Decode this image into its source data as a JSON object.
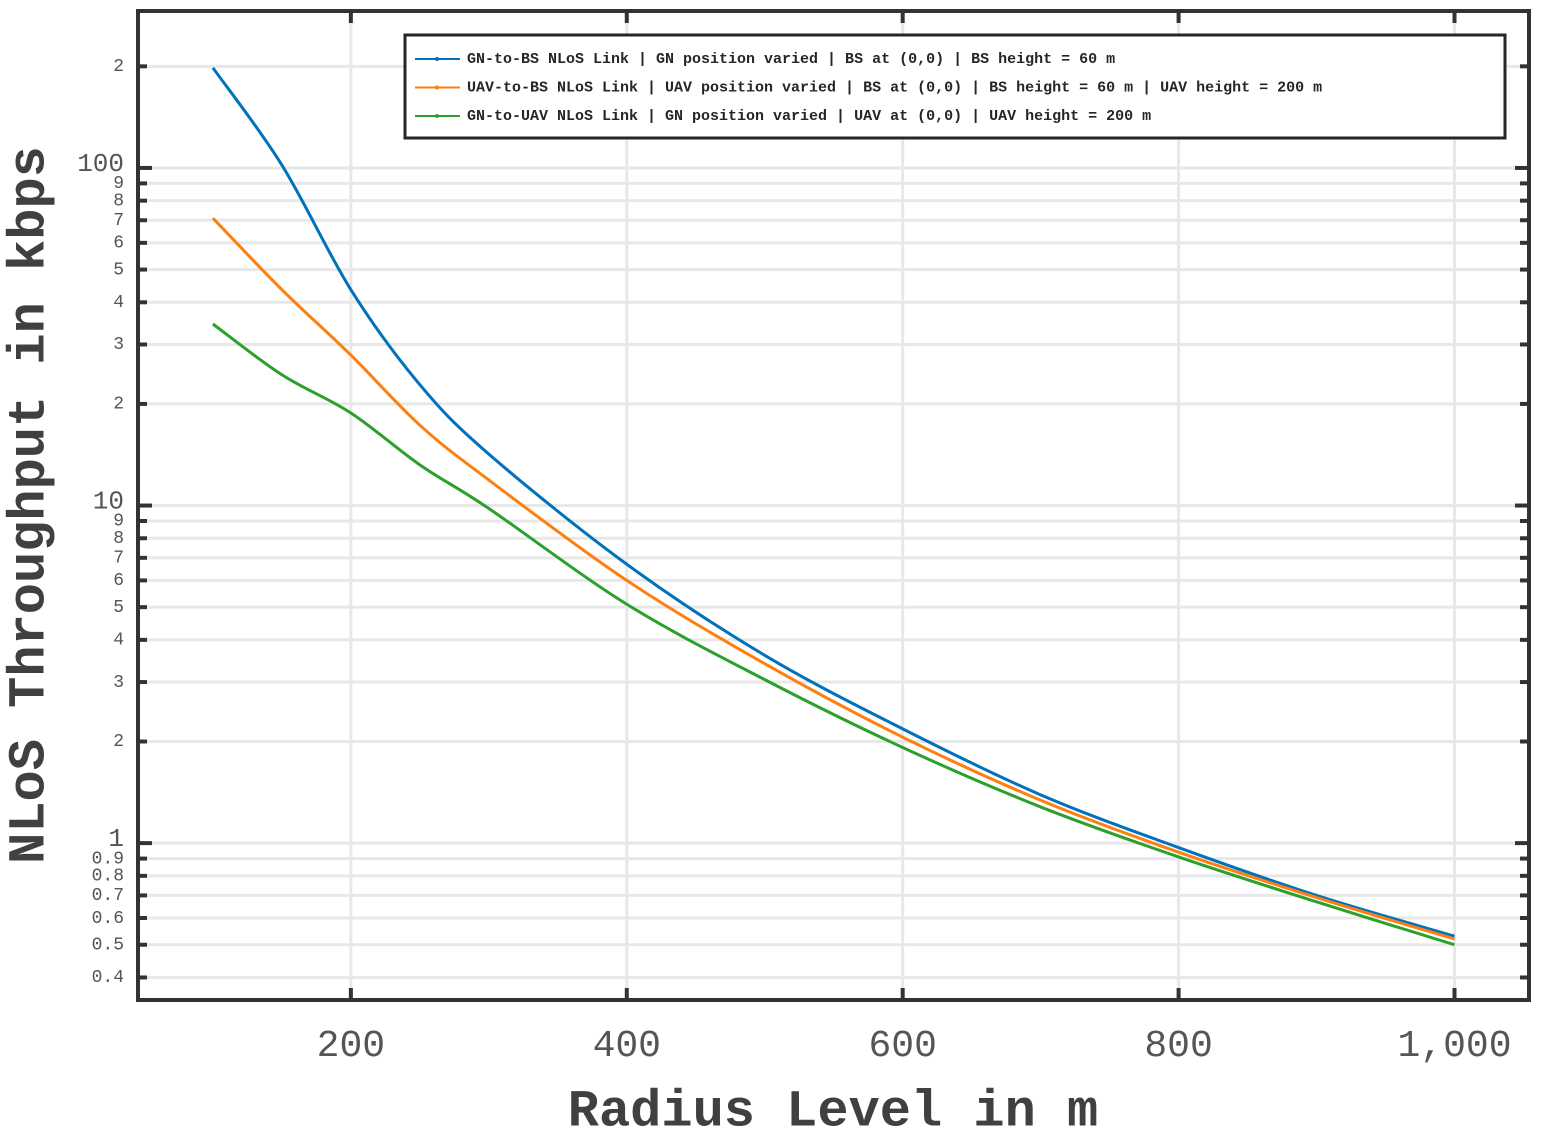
{
  "chart_data": {
    "type": "line",
    "xlabel": "Radius Level in m",
    "ylabel": "NLoS Throughput in kbps",
    "x": [
      100,
      150,
      200,
      250,
      300,
      400,
      500,
      600,
      700,
      800,
      900,
      1000
    ],
    "series": [
      {
        "name": "GN-to-BS NLoS Link | GN position varied | BS at (0,0) | BS height = 60 m",
        "color": "#0072bd",
        "values": [
          198,
          102,
          43.6,
          22.8,
          14.2,
          6.7,
          3.6,
          2.18,
          1.39,
          0.97,
          0.7,
          0.53
        ]
      },
      {
        "name": "UAV-to-BS NLoS Link | UAV position varied | BS at (0,0) | BS height = 60 m | UAV height = 200 m",
        "color": "#ff7f0e",
        "values": [
          71,
          43.6,
          27.9,
          17.3,
          11.9,
          6.0,
          3.4,
          2.06,
          1.34,
          0.94,
          0.69,
          0.52
        ]
      },
      {
        "name": "GN-to-UAV NLoS Link | GN position varied | UAV at (0,0) | UAV height = 200 m",
        "color": "#2ca02c",
        "values": [
          34.5,
          24.4,
          18.8,
          13.2,
          9.8,
          5.1,
          3.05,
          1.92,
          1.28,
          0.91,
          0.67,
          0.5
        ]
      }
    ],
    "xlim": [
      45.7,
      1054
    ],
    "xticks": [
      200,
      400,
      600,
      800,
      {
        "value": 1000,
        "label": "1,000"
      }
    ],
    "ylim": [
      0.343,
      291.7
    ],
    "yscale": "log",
    "yticks": [
      0.4,
      0.5,
      0.6,
      0.7,
      0.8,
      0.9,
      1,
      2,
      3,
      4,
      5,
      6,
      7,
      8,
      9,
      10,
      {
        "value": 20,
        "label": "2"
      },
      {
        "value": 30,
        "label": "3"
      },
      {
        "value": 40,
        "label": "4"
      },
      {
        "value": 50,
        "label": "5"
      },
      {
        "value": 60,
        "label": "6"
      },
      {
        "value": 70,
        "label": "7"
      },
      {
        "value": 80,
        "label": "8"
      },
      {
        "value": 90,
        "label": "9"
      },
      100,
      {
        "value": 200,
        "label": "2"
      }
    ],
    "grid": true,
    "legend": "top-right"
  }
}
